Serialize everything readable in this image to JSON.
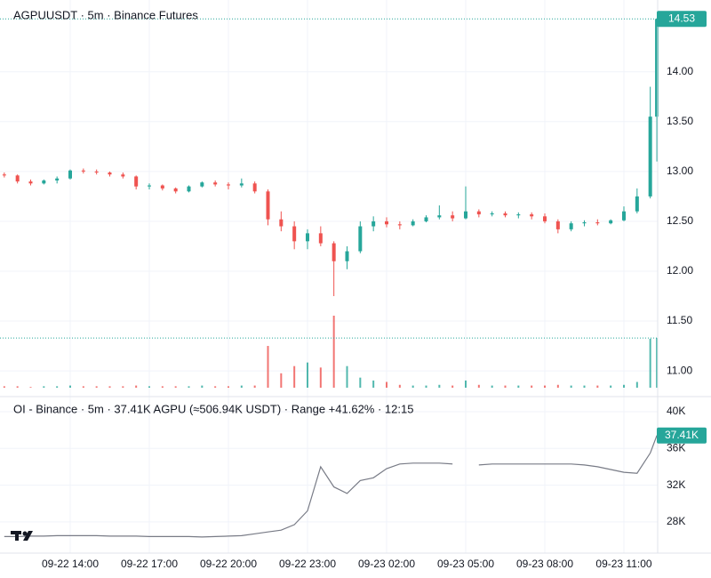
{
  "chart_data": [
    {
      "type": "candlestick",
      "title": "AGPUUSDT · 5m · Binance Futures",
      "x": [
        "09-22 11:30",
        "09-22 12:00",
        "09-22 12:30",
        "09-22 13:00",
        "09-22 13:30",
        "09-22 14:00",
        "09-22 14:30",
        "09-22 15:00",
        "09-22 15:30",
        "09-22 16:00",
        "09-22 16:30",
        "09-22 17:00",
        "09-22 17:30",
        "09-22 18:00",
        "09-22 18:30",
        "09-22 19:00",
        "09-22 19:30",
        "09-22 20:00",
        "09-22 20:30",
        "09-22 21:00",
        "09-22 21:30",
        "09-22 22:00",
        "09-22 22:30",
        "09-22 23:00",
        "09-22 23:30",
        "09-23 00:00",
        "09-23 00:30",
        "09-23 01:00",
        "09-23 01:30",
        "09-23 02:00",
        "09-23 02:30",
        "09-23 03:00",
        "09-23 03:30",
        "09-23 04:00",
        "09-23 04:30",
        "09-23 05:00",
        "09-23 05:30",
        "09-23 06:00",
        "09-23 06:30",
        "09-23 07:00",
        "09-23 07:30",
        "09-23 08:00",
        "09-23 08:30",
        "09-23 09:00",
        "09-23 09:30",
        "09-23 10:00",
        "09-23 10:30",
        "09-23 11:00",
        "09-23 11:30",
        "09-23 12:00",
        "09-23 12:15"
      ],
      "ohlc": [
        [
          12.97,
          12.99,
          12.94,
          12.96
        ],
        [
          12.96,
          12.97,
          12.88,
          12.9
        ],
        [
          12.9,
          12.92,
          12.86,
          12.88
        ],
        [
          12.88,
          12.92,
          12.87,
          12.91
        ],
        [
          12.91,
          12.95,
          12.88,
          12.93
        ],
        [
          12.93,
          13.02,
          12.92,
          13.01
        ],
        [
          13.01,
          13.03,
          12.98,
          13.0
        ],
        [
          13.0,
          13.02,
          12.97,
          12.99
        ],
        [
          12.99,
          13.0,
          12.95,
          12.97
        ],
        [
          12.97,
          12.99,
          12.93,
          12.95
        ],
        [
          12.95,
          12.96,
          12.82,
          12.85
        ],
        [
          12.85,
          12.88,
          12.82,
          12.86
        ],
        [
          12.86,
          12.87,
          12.81,
          12.83
        ],
        [
          12.83,
          12.84,
          12.78,
          12.8
        ],
        [
          12.8,
          12.86,
          12.79,
          12.85
        ],
        [
          12.85,
          12.9,
          12.84,
          12.89
        ],
        [
          12.89,
          12.91,
          12.85,
          12.87
        ],
        [
          12.87,
          12.89,
          12.82,
          12.86
        ],
        [
          12.86,
          12.93,
          12.84,
          12.88
        ],
        [
          12.88,
          12.9,
          12.78,
          12.8
        ],
        [
          12.8,
          12.82,
          12.46,
          12.52
        ],
        [
          12.52,
          12.6,
          12.4,
          12.45
        ],
        [
          12.45,
          12.5,
          12.22,
          12.3
        ],
        [
          12.3,
          12.42,
          12.22,
          12.38
        ],
        [
          12.38,
          12.45,
          12.25,
          12.28
        ],
        [
          12.28,
          12.3,
          11.75,
          12.1
        ],
        [
          12.1,
          12.25,
          12.02,
          12.2
        ],
        [
          12.2,
          12.5,
          12.18,
          12.45
        ],
        [
          12.45,
          12.55,
          12.4,
          12.5
        ],
        [
          12.5,
          12.54,
          12.44,
          12.47
        ],
        [
          12.47,
          12.5,
          12.42,
          12.46
        ],
        [
          12.46,
          12.52,
          12.45,
          12.5
        ],
        [
          12.5,
          12.56,
          12.49,
          12.54
        ],
        [
          12.54,
          12.66,
          12.52,
          12.56
        ],
        [
          12.56,
          12.6,
          12.5,
          12.53
        ],
        [
          12.53,
          12.85,
          12.52,
          12.6
        ],
        [
          12.6,
          12.62,
          12.54,
          12.57
        ],
        [
          12.57,
          12.6,
          12.55,
          12.58
        ],
        [
          12.58,
          12.6,
          12.54,
          12.56
        ],
        [
          12.56,
          12.59,
          12.53,
          12.57
        ],
        [
          12.57,
          12.59,
          12.52,
          12.55
        ],
        [
          12.55,
          12.58,
          12.48,
          12.5
        ],
        [
          12.5,
          12.52,
          12.38,
          12.42
        ],
        [
          12.42,
          12.5,
          12.4,
          12.48
        ],
        [
          12.48,
          12.51,
          12.45,
          12.49
        ],
        [
          12.49,
          12.52,
          12.46,
          12.48
        ],
        [
          12.48,
          12.52,
          12.47,
          12.51
        ],
        [
          12.51,
          12.65,
          12.5,
          12.6
        ],
        [
          12.6,
          12.83,
          12.58,
          12.75
        ],
        [
          12.75,
          13.85,
          12.73,
          13.55
        ],
        [
          13.55,
          14.53,
          13.1,
          14.53
        ]
      ],
      "volume": [
        2,
        2,
        1,
        2,
        2,
        3,
        2,
        2,
        2,
        2,
        3,
        2,
        2,
        2,
        2,
        3,
        2,
        2,
        3,
        3,
        58,
        20,
        30,
        35,
        28,
        100,
        30,
        14,
        10,
        8,
        4,
        3,
        3,
        4,
        3,
        10,
        4,
        3,
        3,
        3,
        3,
        3,
        4,
        3,
        3,
        3,
        3,
        4,
        8,
        68,
        69
      ],
      "up_color": "#26a69a",
      "down_color": "#ef5350",
      "ylim": [
        10.76,
        14.72
      ],
      "yticks": [
        {
          "value": 11,
          "label": "11.00"
        },
        {
          "value": 11.5,
          "label": "11.50"
        },
        {
          "value": 12,
          "label": "12.00"
        },
        {
          "value": 12.5,
          "label": "12.50"
        },
        {
          "value": 13,
          "label": "13.00"
        },
        {
          "value": 13.5,
          "label": "13.50"
        },
        {
          "value": 14,
          "label": "14.00"
        }
      ],
      "xticks": [
        "09-22 14:00",
        "09-22 17:00",
        "09-22 20:00",
        "09-22 23:00",
        "09-23 02:00",
        "09-23 05:00",
        "09-23 08:00",
        "09-23 11:00"
      ],
      "grid": true
    },
    {
      "type": "line",
      "title": "OI - Binance · 5m · 37.41K AGPU (≈506.94K USDT) · Range +41.62% · 12:15",
      "x": [
        "09-22 11:30",
        "09-22 12:00",
        "09-22 12:30",
        "09-22 13:00",
        "09-22 13:30",
        "09-22 14:00",
        "09-22 14:30",
        "09-22 15:00",
        "09-22 15:30",
        "09-22 16:00",
        "09-22 16:30",
        "09-22 17:00",
        "09-22 17:30",
        "09-22 18:00",
        "09-22 18:30",
        "09-22 19:00",
        "09-22 19:30",
        "09-22 20:00",
        "09-22 20:30",
        "09-22 21:00",
        "09-22 21:30",
        "09-22 22:00",
        "09-22 22:30",
        "09-22 23:00",
        "09-22 23:30",
        "09-23 00:00",
        "09-23 00:30",
        "09-23 01:00",
        "09-23 01:30",
        "09-23 02:00",
        "09-23 02:30",
        "09-23 03:00",
        "09-23 03:30",
        "09-23 04:00",
        "09-23 04:30",
        "09-23 05:00",
        "09-23 05:30",
        "09-23 06:00",
        "09-23 06:30",
        "09-23 07:00",
        "09-23 07:30",
        "09-23 08:00",
        "09-23 08:30",
        "09-23 09:00",
        "09-23 09:30",
        "09-23 10:00",
        "09-23 10:30",
        "09-23 11:00",
        "09-23 11:30",
        "09-23 12:00",
        "09-23 12:15"
      ],
      "values": [
        26400,
        26400,
        26450,
        26450,
        26500,
        26500,
        26500,
        26500,
        26450,
        26450,
        26450,
        26400,
        26400,
        26400,
        26400,
        26350,
        26400,
        26450,
        26500,
        26700,
        26900,
        27100,
        27700,
        29200,
        34000,
        31800,
        31100,
        32500,
        32800,
        33800,
        34300,
        34400,
        34400,
        34400,
        34300,
        null,
        34200,
        34300,
        34300,
        34300,
        34300,
        34300,
        34300,
        34300,
        34200,
        34000,
        33700,
        33400,
        33300,
        35500,
        37410
      ],
      "last_label": "37.41K",
      "color": "#787b86",
      "badge_color": "#26a69a",
      "ylim": [
        24600,
        41450
      ],
      "yticks": [
        {
          "value": 28000,
          "label": "28K"
        },
        {
          "value": 32000,
          "label": "32K"
        },
        {
          "value": 36000,
          "label": "36K"
        },
        {
          "value": 40000,
          "label": "40K"
        }
      ],
      "grid": true
    }
  ]
}
